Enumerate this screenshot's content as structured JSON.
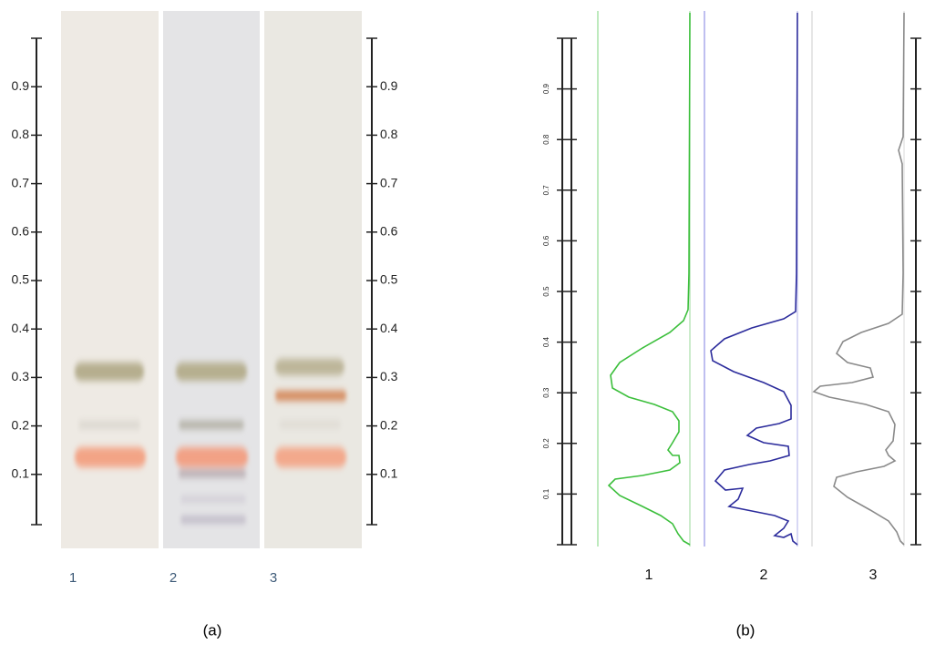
{
  "panel_a": {
    "label": "(a)",
    "rf_ticks": [
      0.9,
      0.8,
      0.7,
      0.6,
      0.5,
      0.4,
      0.3,
      0.2,
      0.1
    ],
    "lanes": [
      "1",
      "2",
      "3"
    ]
  },
  "panel_b": {
    "label": "(b)",
    "rf_ticks": [
      0.9,
      0.8,
      0.7,
      0.6,
      0.5,
      0.4,
      0.3,
      0.2,
      0.1
    ],
    "lanes": [
      "1",
      "2",
      "3"
    ]
  }
}
